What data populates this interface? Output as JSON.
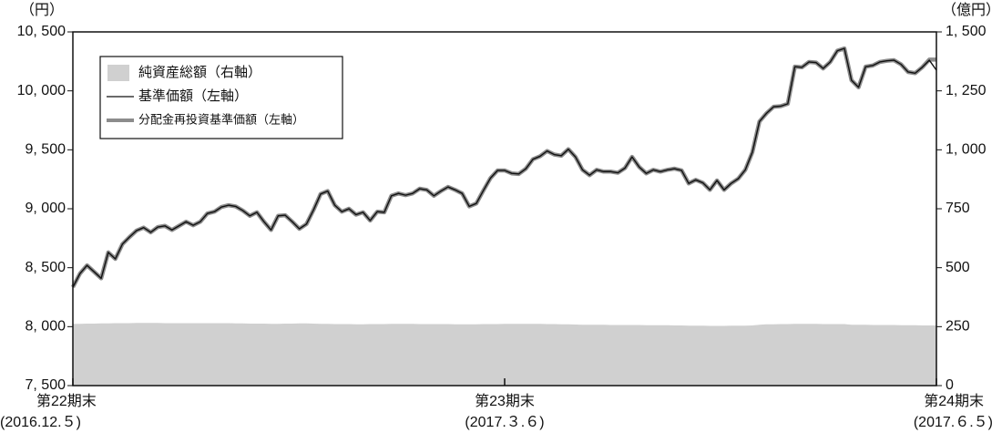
{
  "chart_data": {
    "type": "line",
    "y_unit_label": "（円）",
    "y2_unit_label": "（億円）",
    "ylim": [
      7500,
      10500
    ],
    "yticks": [
      {
        "value": 7500,
        "label": "7, 500"
      },
      {
        "value": 8000,
        "label": "8, 000"
      },
      {
        "value": 8500,
        "label": "8, 500"
      },
      {
        "value": 9000,
        "label": "9, 000"
      },
      {
        "value": 9500,
        "label": "9, 500"
      },
      {
        "value": 10000,
        "label": "10, 000"
      },
      {
        "value": 10500,
        "label": "10, 500"
      }
    ],
    "y2lim": [
      0,
      1500
    ],
    "y2ticks": [
      0,
      250,
      500,
      750,
      {
        "value": 1000,
        "label": "1, 000"
      },
      {
        "value": 1250,
        "label": "1, 250"
      },
      {
        "value": 1500,
        "label": "1, 500"
      }
    ],
    "xticks": [
      {
        "value": 0,
        "label": "第22期末",
        "date": "(2016.12.５)"
      },
      {
        "value": 61,
        "label": "第23期末",
        "date": "(2017.３.６)"
      },
      {
        "value": 122,
        "label": "第24期末",
        "date": "(2017.６.５)"
      }
    ],
    "series": [
      {
        "name": "純資産総額（右軸）",
        "color": "#d0d0d0",
        "kind": "area",
        "axis": "y2",
        "values": [
          262,
          262,
          263,
          263,
          264,
          264,
          265,
          265,
          265,
          266,
          266,
          266,
          266,
          265,
          265,
          265,
          265,
          265,
          265,
          265,
          265,
          265,
          265,
          264,
          264,
          263,
          263,
          263,
          262,
          262,
          263,
          263,
          264,
          264,
          263,
          262,
          262,
          261,
          261,
          261,
          260,
          260,
          261,
          261,
          261,
          262,
          262,
          262,
          262,
          261,
          261,
          261,
          261,
          261,
          260,
          260,
          260,
          260,
          261,
          261,
          261,
          262,
          262,
          262,
          262,
          262,
          262,
          261,
          261,
          260,
          260,
          259,
          258,
          258,
          258,
          258,
          257,
          257,
          257,
          257,
          257,
          256,
          256,
          256,
          256,
          255,
          255,
          254,
          254,
          254,
          253,
          253,
          253,
          254,
          254,
          254,
          255,
          258,
          260,
          260,
          261,
          261,
          262,
          262,
          262,
          262,
          261,
          261,
          261,
          261,
          258,
          258,
          258,
          257,
          257,
          257,
          257,
          256,
          256,
          256,
          255,
          255,
          255
        ]
      },
      {
        "name": "基準価額（左軸）",
        "color": "#111111",
        "kind": "line",
        "values": [
          8335,
          8450,
          8520,
          8465,
          8410,
          8630,
          8575,
          8700,
          8760,
          8815,
          8840,
          8800,
          8845,
          8855,
          8820,
          8855,
          8890,
          8860,
          8890,
          8960,
          8975,
          9015,
          9030,
          9020,
          8985,
          8940,
          8970,
          8890,
          8820,
          8940,
          8945,
          8890,
          8830,
          8870,
          8990,
          9125,
          9150,
          9030,
          8975,
          9000,
          8950,
          8970,
          8900,
          8975,
          8970,
          9110,
          9130,
          9115,
          9130,
          9170,
          9160,
          9110,
          9150,
          9185,
          9160,
          9130,
          9020,
          9045,
          9155,
          9260,
          9325,
          9325,
          9300,
          9295,
          9340,
          9420,
          9445,
          9490,
          9460,
          9450,
          9505,
          9440,
          9330,
          9285,
          9330,
          9315,
          9315,
          9305,
          9345,
          9440,
          9355,
          9300,
          9330,
          9315,
          9330,
          9340,
          9325,
          9215,
          9245,
          9220,
          9160,
          9240,
          9160,
          9215,
          9255,
          9330,
          9480,
          9740,
          9810,
          9865,
          9870,
          9890,
          10205,
          10200,
          10245,
          10240,
          10190,
          10245,
          10340,
          10360,
          10090,
          10030,
          10205,
          10215,
          10245,
          10255,
          10260,
          10225,
          10160,
          10150,
          10200,
          10260,
          10175
        ]
      },
      {
        "name": "分配金再投資基準価額（左軸）",
        "color": "#8c8c8c",
        "kind": "line",
        "values": [
          8335,
          8450,
          8520,
          8465,
          8410,
          8630,
          8575,
          8700,
          8760,
          8815,
          8840,
          8800,
          8845,
          8855,
          8820,
          8855,
          8890,
          8860,
          8890,
          8960,
          8975,
          9015,
          9030,
          9020,
          8985,
          8940,
          8970,
          8890,
          8820,
          8940,
          8945,
          8890,
          8830,
          8870,
          8990,
          9125,
          9150,
          9030,
          8975,
          9000,
          8950,
          8970,
          8900,
          8975,
          8970,
          9110,
          9130,
          9115,
          9130,
          9170,
          9160,
          9110,
          9150,
          9185,
          9160,
          9130,
          9020,
          9045,
          9155,
          9260,
          9325,
          9325,
          9300,
          9295,
          9340,
          9420,
          9445,
          9490,
          9460,
          9450,
          9505,
          9440,
          9330,
          9285,
          9330,
          9315,
          9315,
          9305,
          9345,
          9440,
          9355,
          9300,
          9330,
          9315,
          9330,
          9340,
          9325,
          9215,
          9245,
          9220,
          9160,
          9240,
          9160,
          9215,
          9255,
          9330,
          9480,
          9740,
          9810,
          9865,
          9870,
          9890,
          10205,
          10200,
          10245,
          10240,
          10190,
          10245,
          10340,
          10360,
          10090,
          10030,
          10205,
          10215,
          10245,
          10255,
          10260,
          10225,
          10160,
          10150,
          10200,
          10265,
          10265
        ]
      }
    ]
  }
}
